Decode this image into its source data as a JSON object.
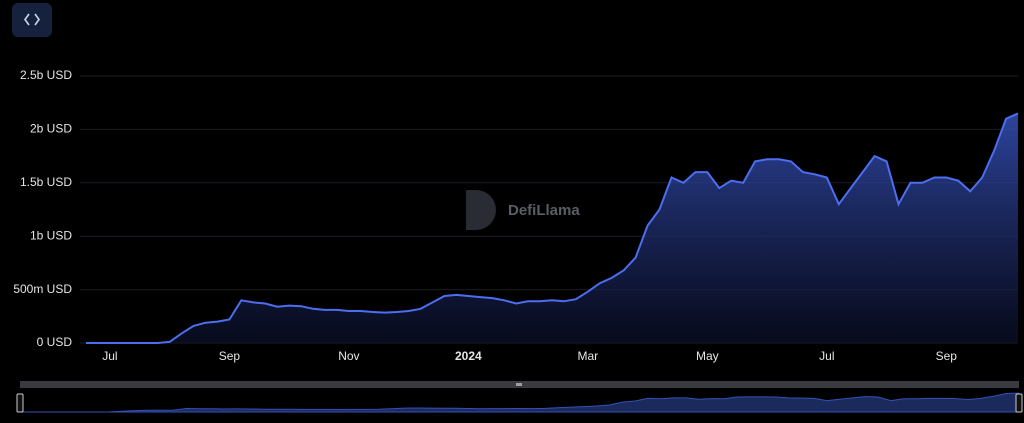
{
  "chart_data": {
    "type": "area",
    "watermark": "DefiLlama",
    "categories": [
      null,
      null,
      "Jul",
      null,
      null,
      null,
      null,
      null,
      null,
      null,
      null,
      null,
      "Sep",
      null,
      null,
      null,
      null,
      null,
      null,
      null,
      null,
      null,
      "Nov",
      null,
      null,
      null,
      null,
      null,
      null,
      null,
      null,
      null,
      "2024",
      null,
      null,
      null,
      null,
      null,
      null,
      null,
      null,
      null,
      "Mar",
      null,
      null,
      null,
      null,
      null,
      null,
      null,
      null,
      null,
      "May",
      null,
      null,
      null,
      null,
      null,
      null,
      null,
      null,
      null,
      "Jul",
      null,
      null,
      null,
      null,
      null,
      null,
      null,
      null,
      null,
      "Sep",
      null,
      null,
      null,
      null,
      null,
      null
    ],
    "series": [
      {
        "color": "#4c6ef0",
        "values": [
          0,
          0,
          0,
          0,
          0,
          0,
          0,
          10000000,
          90000000,
          160000000,
          190000000,
          200000000,
          220000000,
          400000000,
          380000000,
          370000000,
          340000000,
          350000000,
          345000000,
          320000000,
          310000000,
          310000000,
          300000000,
          300000000,
          290000000,
          285000000,
          290000000,
          300000000,
          320000000,
          380000000,
          440000000,
          450000000,
          440000000,
          430000000,
          420000000,
          400000000,
          370000000,
          390000000,
          390000000,
          400000000,
          390000000,
          410000000,
          480000000,
          560000000,
          610000000,
          680000000,
          800000000,
          1100000000,
          1250000000,
          1550000000,
          1500000000,
          1600000000,
          1600000000,
          1450000000,
          1520000000,
          1500000000,
          1700000000,
          1720000000,
          1720000000,
          1700000000,
          1600000000,
          1580000000,
          1550000000,
          1300000000,
          1450000000,
          1600000000,
          1750000000,
          1700000000,
          1300000000,
          1500000000,
          1500000000,
          1550000000,
          1550000000,
          1520000000,
          1420000000,
          1550000000,
          1800000000,
          2100000000,
          2150000000
        ]
      }
    ],
    "ylim": [
      0,
      2500000000
    ],
    "yticks": [
      {
        "value": 0,
        "label": "0 USD"
      },
      {
        "value": 500000000,
        "label": "500m USD"
      },
      {
        "value": 1000000000,
        "label": "1b USD"
      },
      {
        "value": 1500000000,
        "label": "1.5b USD"
      },
      {
        "value": 2000000000,
        "label": "2b USD"
      },
      {
        "value": 2500000000,
        "label": "2.5b USD"
      }
    ],
    "grid": true
  }
}
